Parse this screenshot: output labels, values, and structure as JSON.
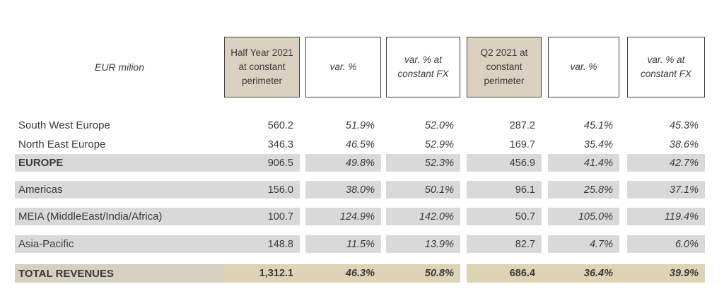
{
  "colors": {
    "text": "#3a3a3a",
    "border": "#414141",
    "header_tan": "#dad1c1",
    "row_gray": "#d9d9d9",
    "total_label_tan": "#d7cfc0",
    "total_value_tan": "#ded3b5"
  },
  "table": {
    "unit_label": "EUR milion",
    "headers": {
      "half_year": "Half Year 2021 at constant perimeter",
      "var_pct_1": "var. %",
      "var_pct_fx_1": "var. % at constant FX",
      "q2": "Q2 2021 at constant perimeter",
      "var_pct_2": "var. %",
      "var_pct_fx_2": "var. % at constant FX"
    },
    "rows": [
      {
        "label": "South West Europe",
        "values": [
          "560.2",
          "51.9%",
          "52.0%",
          "287.2",
          "45.1%",
          "45.3%"
        ]
      },
      {
        "label": "North East Europe",
        "values": [
          "346.3",
          "46.5%",
          "52.9%",
          "169.7",
          "35.4%",
          "38.6%"
        ]
      },
      {
        "label": "EUROPE",
        "values": [
          "906.5",
          "49.8%",
          "52.3%",
          "456.9",
          "41.4%",
          "42.7%"
        ]
      },
      {
        "label": "Americas",
        "values": [
          "156.0",
          "38.0%",
          "50.1%",
          "96.1",
          "25.8%",
          "37.1%"
        ]
      },
      {
        "label": "MEIA (MiddleEast/India/Africa)",
        "values": [
          "100.7",
          "124.9%",
          "142.0%",
          "50.7",
          "105.0%",
          "119.4%"
        ]
      },
      {
        "label": "Asia-Pacific",
        "values": [
          "148.8",
          "11.5%",
          "13.9%",
          "82.7",
          "4.7%",
          "6.0%"
        ]
      },
      {
        "label": "TOTAL REVENUES",
        "values": [
          "1,312.1",
          "46.3%",
          "50.8%",
          "686.4",
          "36.4%",
          "39.9%"
        ]
      }
    ]
  }
}
